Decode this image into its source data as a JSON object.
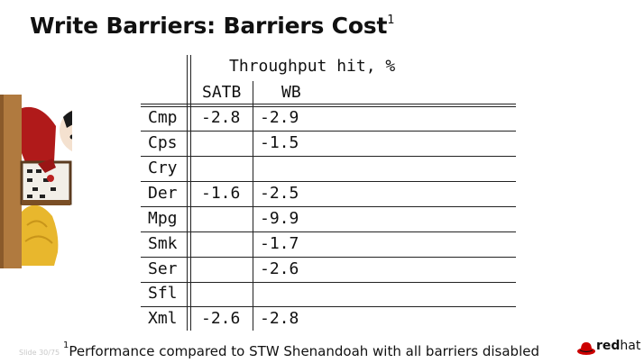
{
  "slide": {
    "title": "Write Barriers: Barriers Cost",
    "title_footnote_mark": "1",
    "slide_number": "Slide 30/75",
    "footnote_mark": "1",
    "footnote": "Performance compared to STW Shenandoah with all barriers disabled",
    "logo": {
      "name": "redhat-logo",
      "text_bold": "red",
      "text_light": "hat",
      "color": "#cc0000"
    }
  },
  "table": {
    "group_header": "Throughput hit, %",
    "columns": [
      "SATB",
      "WB"
    ],
    "rows": [
      {
        "name": "Cmp",
        "satb": "-2.8",
        "wb": "-2.9"
      },
      {
        "name": "Cps",
        "satb": "",
        "wb": "-1.5"
      },
      {
        "name": "Cry",
        "satb": "",
        "wb": ""
      },
      {
        "name": "Der",
        "satb": "-1.6",
        "wb": "-2.5"
      },
      {
        "name": "Mpg",
        "satb": "",
        "wb": "-9.9"
      },
      {
        "name": "Smk",
        "satb": "",
        "wb": "-1.7"
      },
      {
        "name": "Ser",
        "satb": "",
        "wb": "-2.6"
      },
      {
        "name": "Sfl",
        "satb": "",
        "wb": ""
      },
      {
        "name": "Xml",
        "satb": "-2.6",
        "wb": "-2.8"
      }
    ]
  },
  "illustration": {
    "icon": "abacus-counting-person-icon"
  }
}
